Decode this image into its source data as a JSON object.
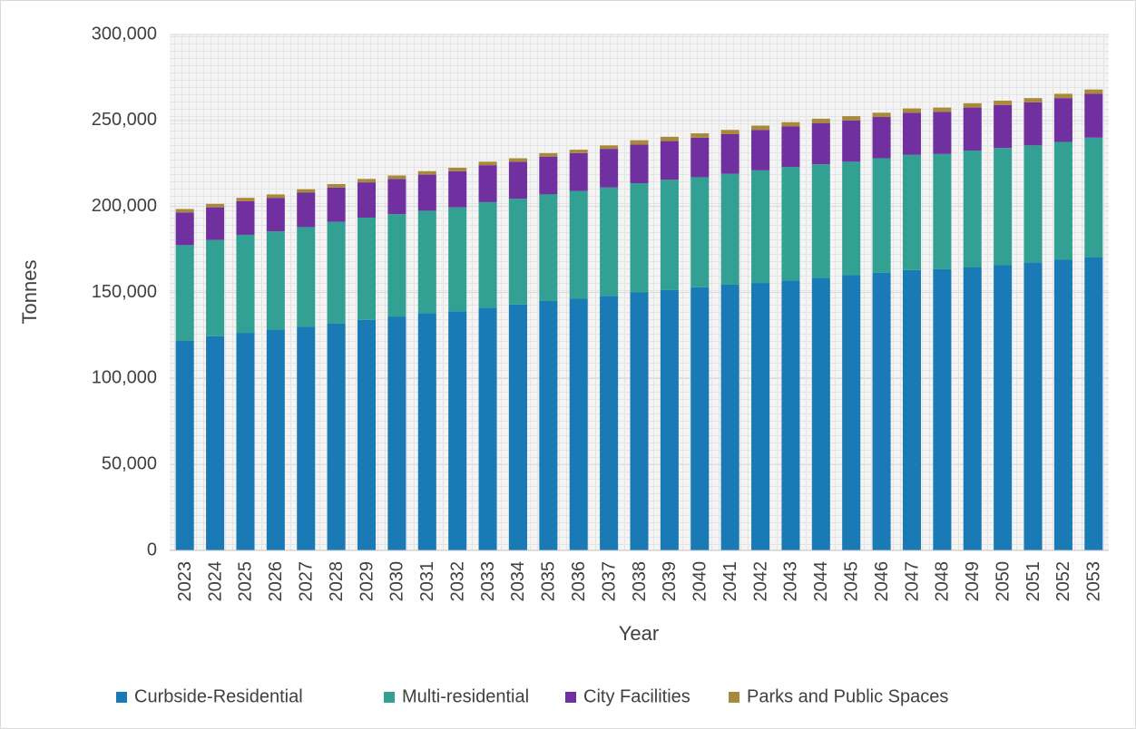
{
  "chart_data": {
    "type": "stacked_bar",
    "x_label": "Year",
    "y_label": "Tonnes",
    "categories": [
      "2023",
      "2024",
      "2025",
      "2026",
      "2027",
      "2028",
      "2029",
      "2030",
      "2031",
      "2032",
      "2033",
      "2034",
      "2035",
      "2036",
      "2037",
      "2038",
      "2039",
      "2040",
      "2041",
      "2042",
      "2043",
      "2044",
      "2045",
      "2046",
      "2047",
      "2048",
      "2049",
      "2050",
      "2051",
      "2052",
      "2053"
    ],
    "series": [
      {
        "name": "Curbside-Residential",
        "color": "#1a7ab5",
        "values": [
          122000,
          124500,
          126500,
          128500,
          130000,
          132000,
          134000,
          136000,
          138000,
          139000,
          141000,
          143000,
          145000,
          146500,
          148000,
          150000,
          151500,
          153000,
          154500,
          155500,
          157000,
          158500,
          160000,
          161500,
          163000,
          163500,
          164500,
          166000,
          167500,
          169000,
          170500
        ]
      },
      {
        "name": "Multi-residential",
        "color": "#33a094",
        "values": [
          55500,
          56000,
          57000,
          57000,
          58000,
          59000,
          59500,
          59500,
          59500,
          60500,
          61500,
          61500,
          62000,
          62500,
          63000,
          63500,
          64000,
          64000,
          64500,
          65500,
          66000,
          66000,
          66000,
          66500,
          67000,
          67000,
          68000,
          68000,
          68000,
          68500,
          69500
        ]
      },
      {
        "name": "City Facilities",
        "color": "#7030a0",
        "values": [
          19000,
          19000,
          19500,
          19500,
          20000,
          20000,
          20500,
          20500,
          21000,
          21000,
          21500,
          21500,
          22000,
          22000,
          22500,
          22500,
          22500,
          23000,
          23000,
          23500,
          23500,
          24000,
          24000,
          24000,
          24500,
          24500,
          25000,
          25000,
          25000,
          25500,
          25500
        ]
      },
      {
        "name": "Parks and Public Spaces",
        "color": "#a88b3a",
        "values": [
          2000,
          2000,
          2000,
          2000,
          2000,
          2000,
          2000,
          2000,
          2000,
          2000,
          2000,
          2000,
          2000,
          2000,
          2000,
          2500,
          2500,
          2500,
          2500,
          2500,
          2500,
          2500,
          2500,
          2500,
          2500,
          2500,
          2500,
          2500,
          2500,
          2500,
          2500
        ]
      }
    ],
    "ylim": [
      0,
      300000
    ],
    "yticks": [
      0,
      {
        "value": 50000,
        "label": "50,000"
      },
      {
        "value": 100000,
        "label": "100,000"
      },
      {
        "value": 150000,
        "label": "150,000"
      },
      {
        "value": 200000,
        "label": "200,000"
      },
      {
        "value": 250000,
        "label": "250,000"
      },
      {
        "value": 300000,
        "label": "300,000"
      }
    ],
    "grid": true,
    "legend": "bottom"
  }
}
